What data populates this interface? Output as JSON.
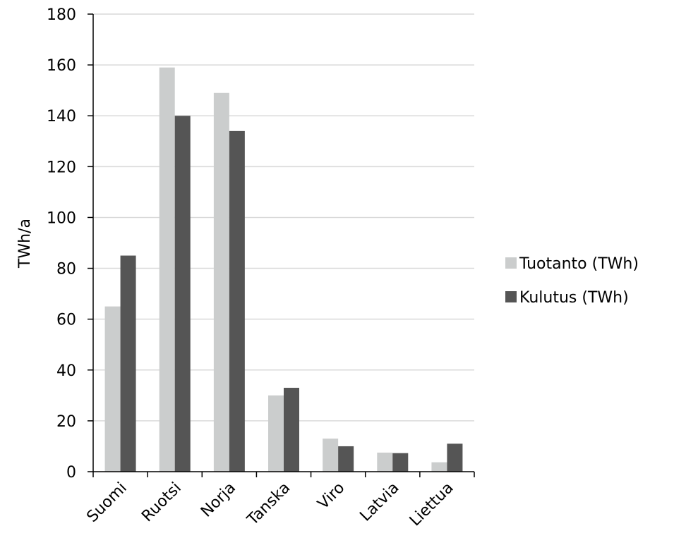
{
  "chart_data": {
    "type": "bar",
    "categories": [
      "Suomi",
      "Ruotsi",
      "Norja",
      "Tanska",
      "Viro",
      "Latvia",
      "Liettua"
    ],
    "series": [
      {
        "name": "Tuotanto (TWh)",
        "color": "#cbcdcd",
        "values": [
          65,
          159,
          149,
          30,
          13,
          7.5,
          3.7
        ]
      },
      {
        "name": "Kulutus (TWh)",
        "color": "#555555",
        "values": [
          85,
          140,
          134,
          33,
          10,
          7.3,
          11
        ]
      }
    ],
    "ylabel": "TWh/a",
    "xlabel": "",
    "ylim": [
      0,
      180
    ],
    "yticks": [
      0,
      20,
      40,
      60,
      80,
      100,
      120,
      140,
      160,
      180
    ],
    "grid": true,
    "legend_position": "right"
  }
}
